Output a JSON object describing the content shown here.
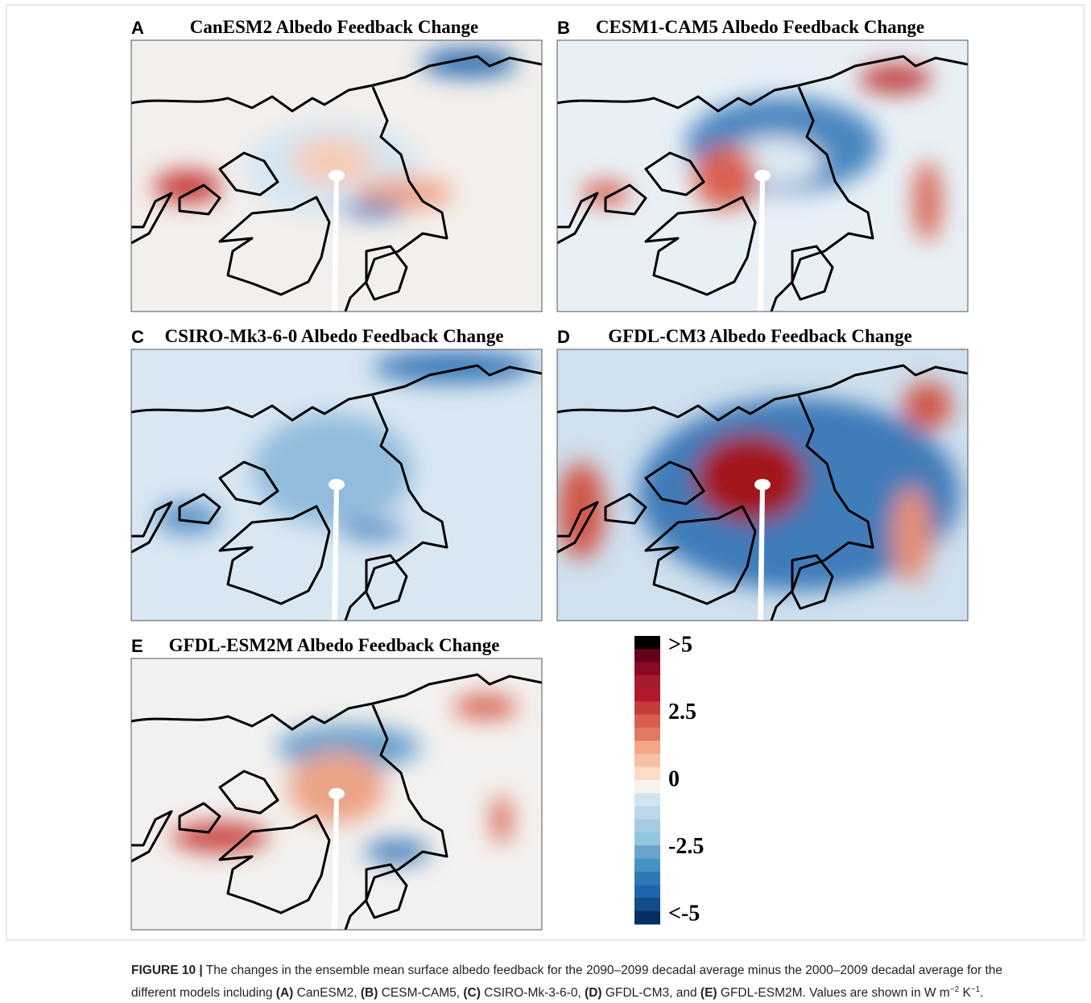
{
  "panels": [
    {
      "letter": "A",
      "title": "CanESM2 Albedo Feedback Change"
    },
    {
      "letter": "B",
      "title": "CESM1-CAM5 Albedo Feedback Change"
    },
    {
      "letter": "C",
      "title": "CSIRO-Mk3-6-0 Albedo Feedback Change"
    },
    {
      "letter": "D",
      "title": "GFDL-CM3 Albedo Feedback Change"
    },
    {
      "letter": "E",
      "title": "GFDL-ESM2M Albedo Feedback Change"
    }
  ],
  "colorbar": {
    "lim": [
      -5,
      5
    ],
    "ticks": [
      {
        "value": 5,
        "label": ">5"
      },
      2.5,
      0,
      -2.5,
      {
        "value": -5,
        "label": "<-5"
      }
    ],
    "colors": [
      "#000000",
      "#67001f",
      "#8b0a24",
      "#a51d2c",
      "#b2182b",
      "#c43c3c",
      "#d6604d",
      "#e07a62",
      "#f4a582",
      "#f8c0a5",
      "#fddbc7",
      "#f7f3f0",
      "#d1e5f0",
      "#bcd7e9",
      "#a6cce3",
      "#92c5de",
      "#6aa4cd",
      "#4393c3",
      "#2f78b5",
      "#2166ac",
      "#134c89",
      "#053061"
    ]
  },
  "caption": [
    {
      "text": "FIGURE 10 |",
      "style": "bold"
    },
    {
      "text": " The changes in the ensemble mean surface albedo feedback for the 2090–2099 decadal average minus the 2000–2009 decadal average for the different models including ",
      "style": "normal"
    },
    {
      "text": "(A)",
      "style": "bold"
    },
    {
      "text": " CanESM2, ",
      "style": "normal"
    },
    {
      "text": "(B)",
      "style": "bold"
    },
    {
      "text": " CESM-CAM5, ",
      "style": "normal"
    },
    {
      "text": "(C)",
      "style": "bold"
    },
    {
      "text": " CSIRO-Mk-3-6-0, ",
      "style": "normal"
    },
    {
      "text": "(D)",
      "style": "bold"
    },
    {
      "text": " GFDL-CM3, and ",
      "style": "normal"
    },
    {
      "text": "(E)",
      "style": "bold"
    },
    {
      "text": " GFDL-ESM2M. Values are shown in W m",
      "style": "normal"
    },
    {
      "text": "−2",
      "style": "sup"
    },
    {
      "text": " K",
      "style": "normal"
    },
    {
      "text": "−1",
      "style": "sup"
    },
    {
      "text": ".",
      "style": "normal"
    }
  ]
}
